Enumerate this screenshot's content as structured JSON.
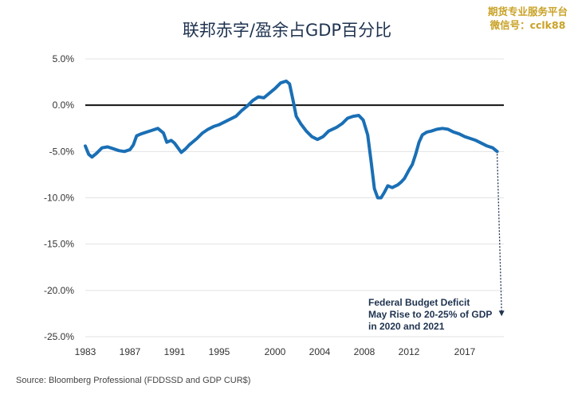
{
  "title": "联邦赤字/盈余占GDP百分比",
  "watermark": {
    "line1": "期货专业服务平台",
    "line2": "微信号：cclk88"
  },
  "source": "Source: Bloomberg Professional (FDDSSD and GDP CUR$)",
  "colors": {
    "line": "#1a6fb5",
    "zero_line": "#111111",
    "grid": "#e3e3e3",
    "text": "#333333",
    "title": "#1f3350"
  },
  "chart_data": {
    "type": "line",
    "title": "联邦赤字/盈余占GDP百分比",
    "xlabel": "",
    "ylabel": "",
    "x_ticks": [
      "1983",
      "1987",
      "1991",
      "1995",
      "2000",
      "2004",
      "2008",
      "2012",
      "2017"
    ],
    "y_ticks": [
      "5.0%",
      "0.0%",
      "-5.0%",
      "-10.0%",
      "-15.0%",
      "-20.0%",
      "-25.0%"
    ],
    "ylim": [
      -25,
      5
    ],
    "xlim": [
      1983,
      2020.5
    ],
    "grid": true,
    "series": [
      {
        "values": [
          [
            1983.0,
            -4.4
          ],
          [
            1983.3,
            -5.3
          ],
          [
            1983.6,
            -5.6
          ],
          [
            1984.0,
            -5.2
          ],
          [
            1984.5,
            -4.6
          ],
          [
            1985.0,
            -4.5
          ],
          [
            1985.5,
            -4.7
          ],
          [
            1986.0,
            -4.9
          ],
          [
            1986.5,
            -5.0
          ],
          [
            1987.0,
            -4.8
          ],
          [
            1987.3,
            -4.3
          ],
          [
            1987.6,
            -3.3
          ],
          [
            1988.0,
            -3.1
          ],
          [
            1988.5,
            -2.9
          ],
          [
            1989.0,
            -2.7
          ],
          [
            1989.5,
            -2.5
          ],
          [
            1990.0,
            -3.0
          ],
          [
            1990.3,
            -4.0
          ],
          [
            1990.7,
            -3.8
          ],
          [
            1991.0,
            -4.1
          ],
          [
            1991.3,
            -4.6
          ],
          [
            1991.6,
            -5.1
          ],
          [
            1992.0,
            -4.7
          ],
          [
            1992.3,
            -4.3
          ],
          [
            1992.7,
            -3.9
          ],
          [
            1993.0,
            -3.6
          ],
          [
            1993.5,
            -3.0
          ],
          [
            1994.0,
            -2.6
          ],
          [
            1994.5,
            -2.3
          ],
          [
            1995.0,
            -2.1
          ],
          [
            1995.5,
            -1.8
          ],
          [
            1996.0,
            -1.5
          ],
          [
            1996.5,
            -1.2
          ],
          [
            1997.0,
            -0.6
          ],
          [
            1997.5,
            -0.1
          ],
          [
            1998.0,
            0.5
          ],
          [
            1998.5,
            0.9
          ],
          [
            1999.0,
            0.8
          ],
          [
            1999.5,
            1.3
          ],
          [
            2000.0,
            1.8
          ],
          [
            2000.5,
            2.4
          ],
          [
            2001.0,
            2.6
          ],
          [
            2001.3,
            2.3
          ],
          [
            2001.6,
            0.6
          ],
          [
            2001.9,
            -1.2
          ],
          [
            2002.3,
            -2.0
          ],
          [
            2002.8,
            -2.8
          ],
          [
            2003.3,
            -3.4
          ],
          [
            2003.8,
            -3.7
          ],
          [
            2004.3,
            -3.4
          ],
          [
            2004.8,
            -2.8
          ],
          [
            2005.5,
            -2.4
          ],
          [
            2006.0,
            -2.0
          ],
          [
            2006.5,
            -1.4
          ],
          [
            2007.0,
            -1.2
          ],
          [
            2007.5,
            -1.1
          ],
          [
            2007.9,
            -1.6
          ],
          [
            2008.3,
            -3.2
          ],
          [
            2008.6,
            -6.0
          ],
          [
            2008.9,
            -9.0
          ],
          [
            2009.2,
            -10.0
          ],
          [
            2009.5,
            -10.0
          ],
          [
            2009.8,
            -9.4
          ],
          [
            2010.1,
            -8.7
          ],
          [
            2010.5,
            -8.9
          ],
          [
            2011.0,
            -8.6
          ],
          [
            2011.3,
            -8.3
          ],
          [
            2011.6,
            -7.9
          ],
          [
            2012.0,
            -7.0
          ],
          [
            2012.3,
            -6.4
          ],
          [
            2012.6,
            -5.3
          ],
          [
            2012.9,
            -4.0
          ],
          [
            2013.2,
            -3.2
          ],
          [
            2013.6,
            -2.9
          ],
          [
            2014.0,
            -2.8
          ],
          [
            2014.5,
            -2.6
          ],
          [
            2015.0,
            -2.5
          ],
          [
            2015.5,
            -2.6
          ],
          [
            2016.0,
            -2.9
          ],
          [
            2016.5,
            -3.1
          ],
          [
            2017.0,
            -3.4
          ],
          [
            2017.5,
            -3.6
          ],
          [
            2018.0,
            -3.8
          ],
          [
            2018.5,
            -4.1
          ],
          [
            2019.0,
            -4.4
          ],
          [
            2019.5,
            -4.6
          ],
          [
            2019.9,
            -5.0
          ]
        ]
      }
    ],
    "annotations": [
      {
        "text_lines": [
          "Federal Budget Deficit",
          "May Rise to 20-25% of GDP",
          "in 2020 and 2021"
        ],
        "arrow_from": [
          2019.9,
          -5.0
        ],
        "arrow_to": [
          2020.3,
          -22.7
        ]
      }
    ]
  }
}
